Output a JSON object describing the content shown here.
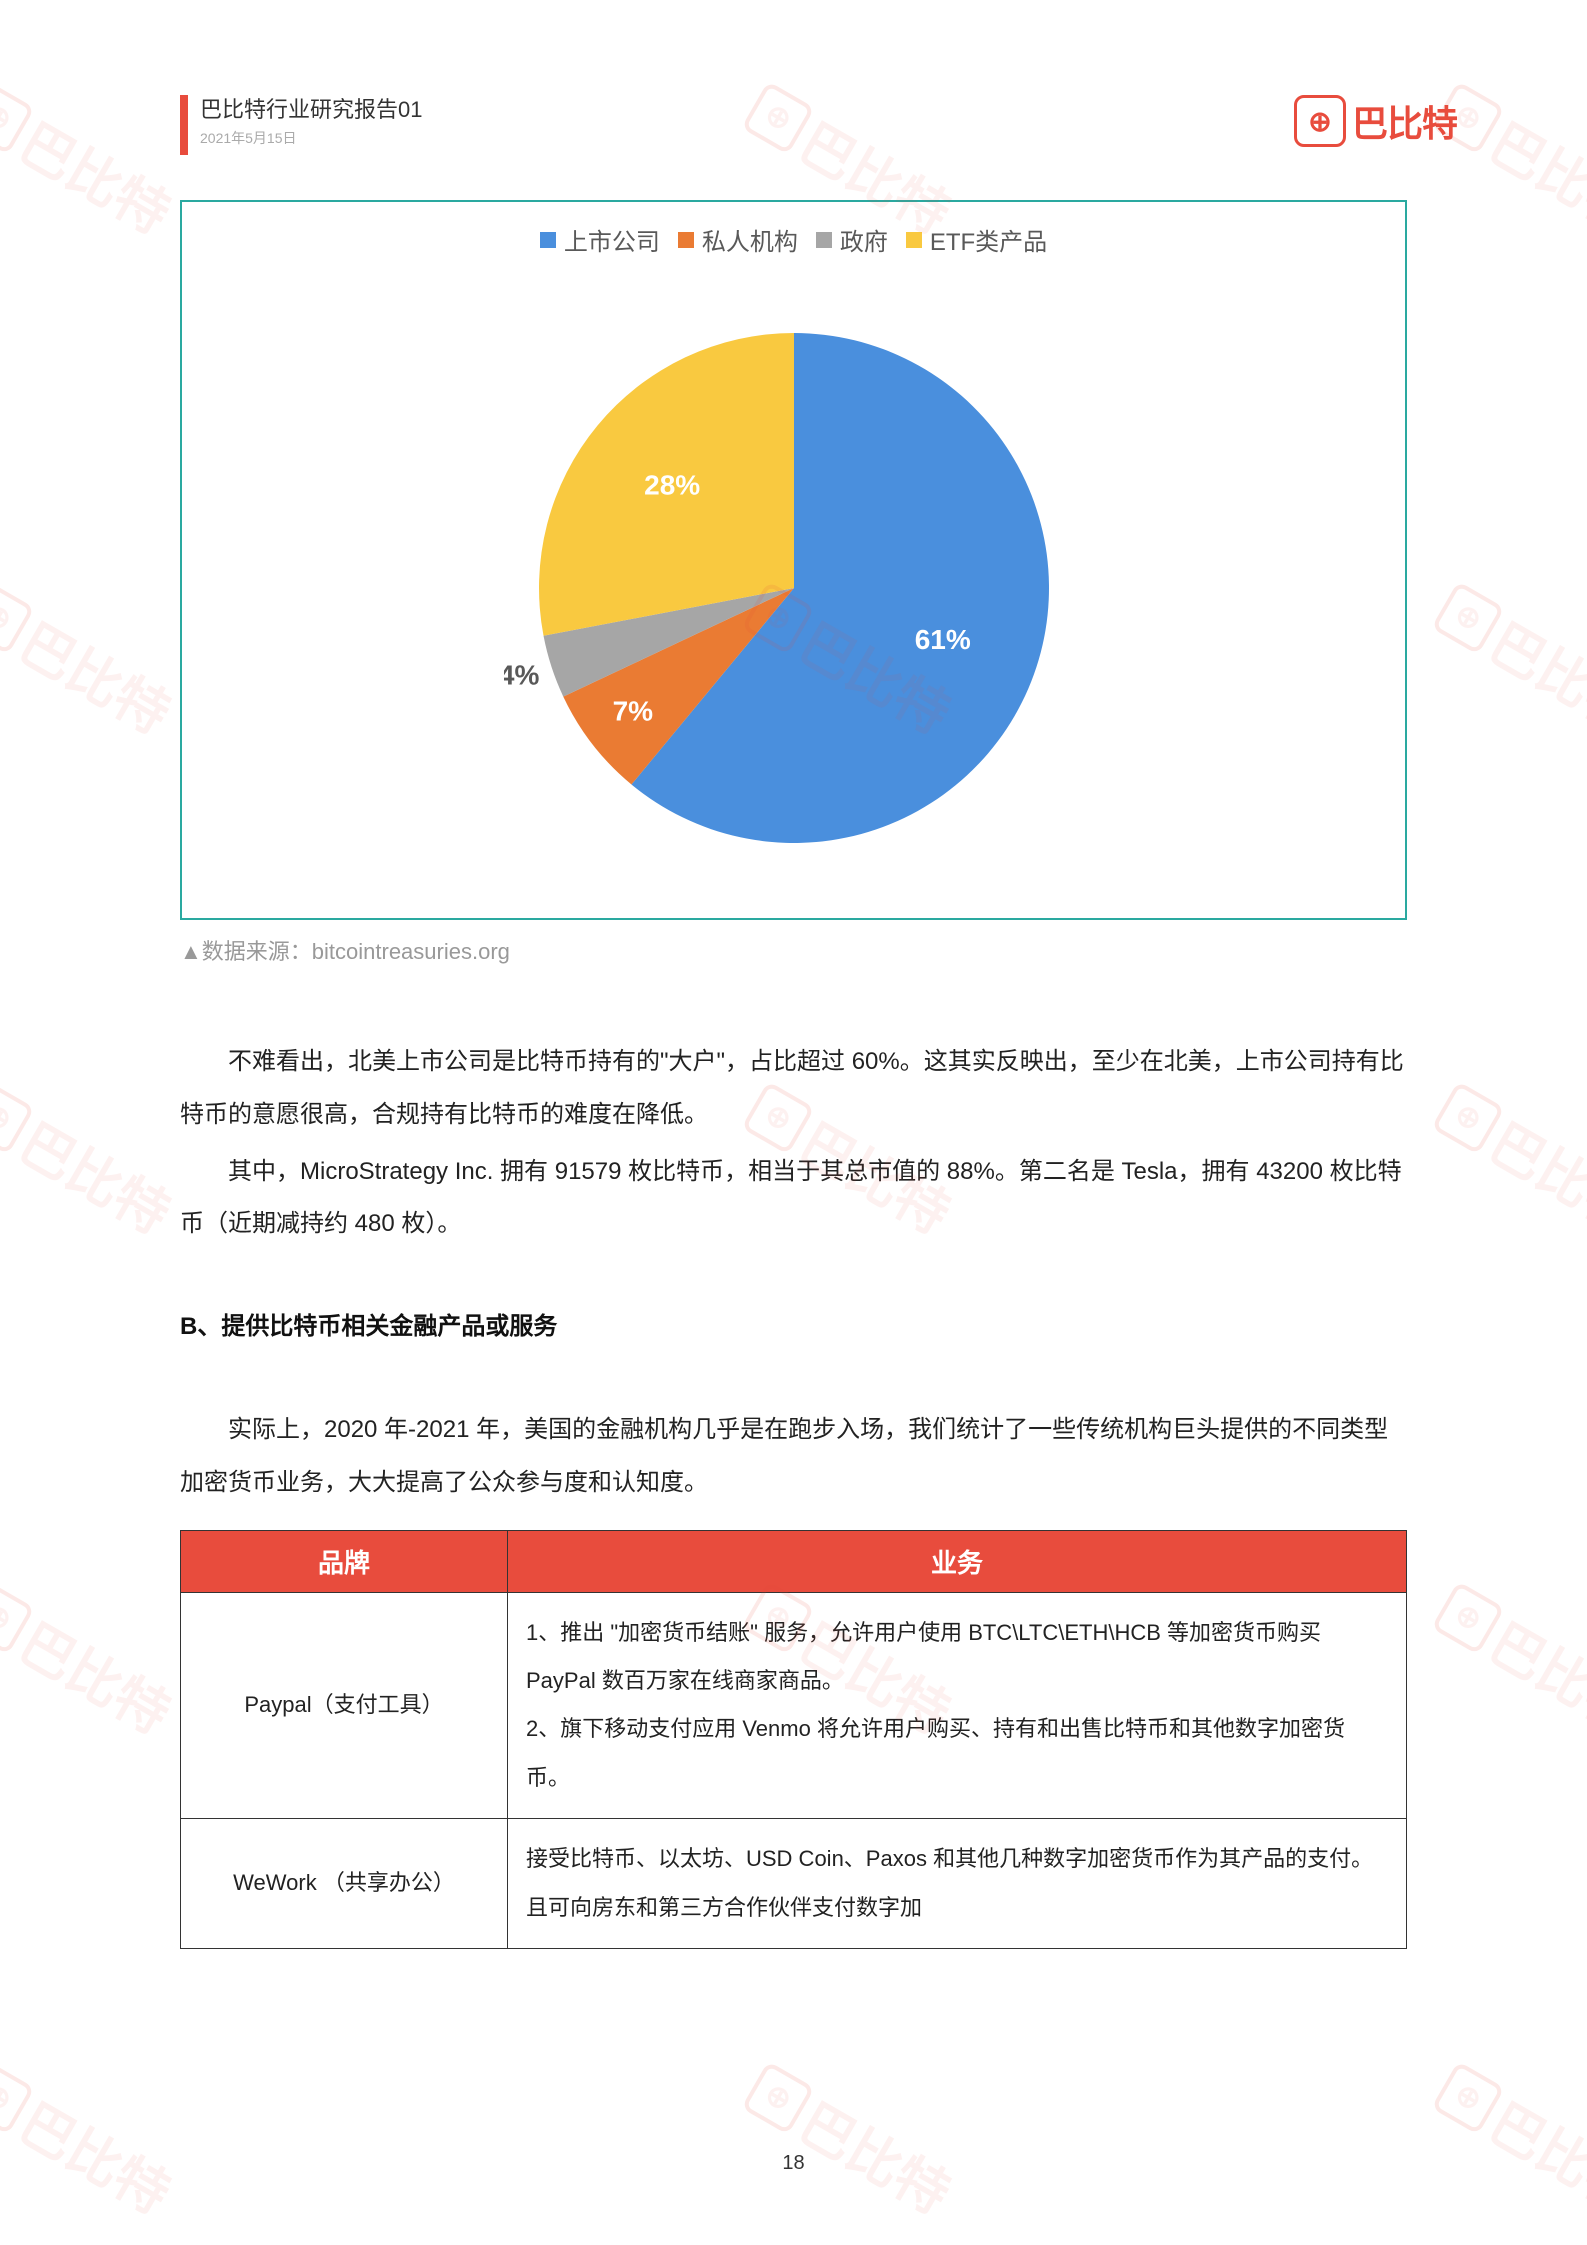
{
  "header": {
    "title": "巴比特行业研究报告01",
    "date": "2021年5月15日",
    "logo_text": "巴比特",
    "logo_glyph": "⊕"
  },
  "watermark": {
    "text": "巴比特",
    "glyph": "⊕"
  },
  "chart": {
    "type": "pie",
    "legend": [
      {
        "label": "上市公司",
        "color": "#4a8fdd"
      },
      {
        "label": "私人机构",
        "color": "#ea7b33"
      },
      {
        "label": "政府",
        "color": "#a6a6a6"
      },
      {
        "label": "ETF类产品",
        "color": "#f9c940"
      }
    ],
    "slices": [
      {
        "label": "61%",
        "value": 61,
        "color": "#4a8fdd",
        "label_pos": "inside",
        "label_color": "#ffffff"
      },
      {
        "label": "7%",
        "value": 7,
        "color": "#ea7b33",
        "label_pos": "inside",
        "label_color": "#ffffff"
      },
      {
        "label": "4%",
        "value": 4,
        "color": "#a6a6a6",
        "label_pos": "outside",
        "label_color": "#595959"
      },
      {
        "label": "28%",
        "value": 28,
        "color": "#f9c940",
        "label_pos": "inside",
        "label_color": "#ffffff"
      }
    ],
    "start_angle_deg": 0,
    "radius": 255,
    "label_fontsize": 28,
    "label_fontweight": 700,
    "border_color": "#2aa9a0",
    "background_color": "#ffffff",
    "source_prefix": "▲数据来源：",
    "source": "bitcointreasuries.org"
  },
  "paragraphs": {
    "p1": "不难看出，北美上市公司是比特币持有的\"大户\"，占比超过 60%。这其实反映出，至少在北美，上市公司持有比特币的意愿很高，合规持有比特币的难度在降低。",
    "p2": "其中，MicroStrategy Inc. 拥有 91579 枚比特币，相当于其总市值的 88%。第二名是 Tesla，拥有 43200 枚比特币（近期减持约 480 枚）。",
    "section_b": "B、提供比特币相关金融产品或服务",
    "p3": "实际上，2020 年-2021 年，美国的金融机构几乎是在跑步入场，我们统计了一些传统机构巨头提供的不同类型加密货币业务，大大提高了公众参与度和认知度。"
  },
  "table": {
    "header_bg": "#e84c3d",
    "header_fg": "#ffffff",
    "border_color": "#333333",
    "columns": [
      "品牌",
      "业务"
    ],
    "rows": [
      {
        "brand": "Paypal（支付工具）",
        "business": "1、推出 \"加密货币结账\" 服务，允许用户使用 BTC\\LTC\\ETH\\HCB 等加密货币购买 PayPal 数百万家在线商家商品。\n2、旗下移动支付应用 Venmo 将允许用户购买、持有和出售比特币和其他数字加密货币。"
      },
      {
        "brand": "WeWork （共享办公）",
        "business": "接受比特币、以太坊、USD Coin、Paxos 和其他几种数字加密货币作为其产品的支付。且可向房东和第三方合作伙伴支付数字加"
      }
    ]
  },
  "page_number": "18"
}
